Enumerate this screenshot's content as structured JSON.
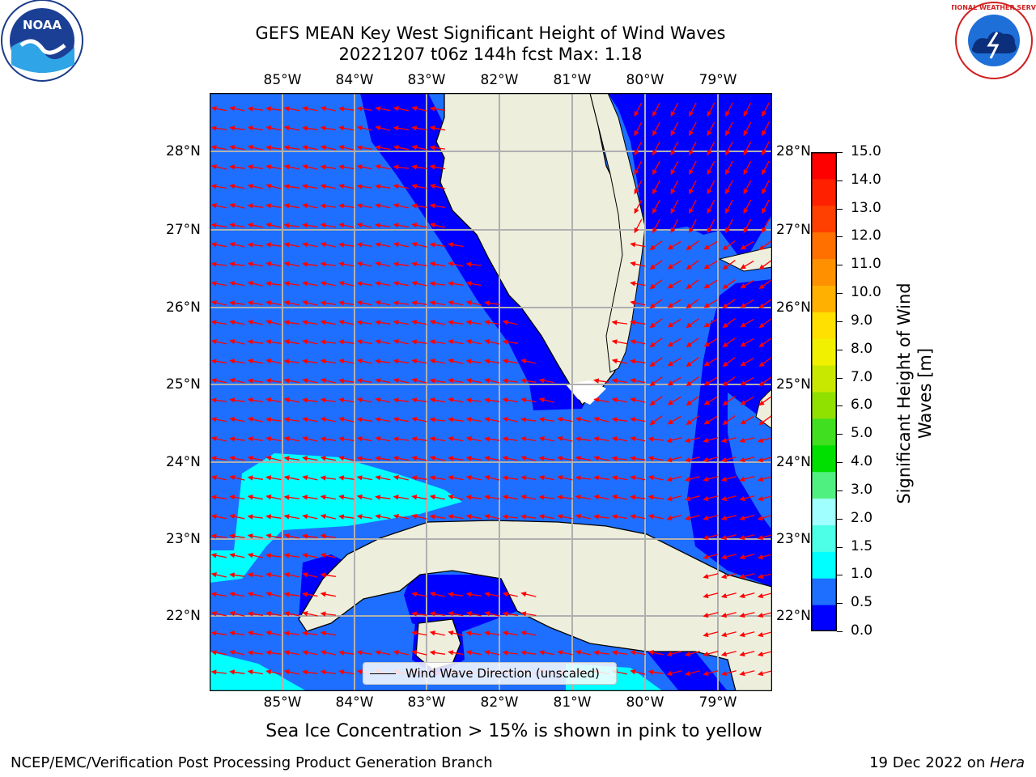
{
  "title": {
    "line1": "GEFS MEAN Key West Significant Height of Wind Waves",
    "line2": "20221207 t06z 144h fcst   Max: 1.18"
  },
  "map": {
    "lon_ticks": [
      "85°W",
      "84°W",
      "83°W",
      "82°W",
      "81°W",
      "80°W",
      "79°W"
    ],
    "lat_ticks": [
      "28°N",
      "27°N",
      "26°N",
      "25°N",
      "24°N",
      "23°N",
      "22°N"
    ],
    "legend_label": "Wind Wave Direction (unscaled)",
    "colors": {
      "ocean_0_0.5": "#0000ff",
      "ocean_0.5_1.0": "#1e6fff",
      "ocean_1.0_1.5": "#00ffff",
      "land": "#eeeedd",
      "arrow": "#ff0000",
      "grid": "#b0b0b0"
    }
  },
  "colorbar": {
    "label_line1": "Significant Height of Wind",
    "label_line2": "Waves [m]",
    "ticks": [
      "15.0",
      "14.0",
      "13.0",
      "12.0",
      "11.0",
      "10.0",
      "9.0",
      "8.0",
      "7.0",
      "6.0",
      "5.0",
      "4.0",
      "3.0",
      "2.0",
      "1.5",
      "1.0",
      "0.5",
      "0.0"
    ],
    "colors": [
      "#0000ff",
      "#1e6fff",
      "#00ffff",
      "#4dffe6",
      "#a0ffff",
      "#50f080",
      "#00e000",
      "#40e020",
      "#90e000",
      "#c8e800",
      "#f0f000",
      "#ffe000",
      "#ffb000",
      "#ff9000",
      "#ff7000",
      "#ff4000",
      "#ff2000",
      "#ff0000"
    ]
  },
  "note": "Sea Ice Concentration > 15% is shown in pink to yellow",
  "footer": {
    "left": "NCEP/EMC/Verification Post Processing Product Generation Branch",
    "right_date": "19 Dec 2022 on ",
    "right_host": "Hera"
  },
  "logos": {
    "noaa": "NOAA",
    "nws": "NATIONAL WEATHER SERVICE"
  }
}
